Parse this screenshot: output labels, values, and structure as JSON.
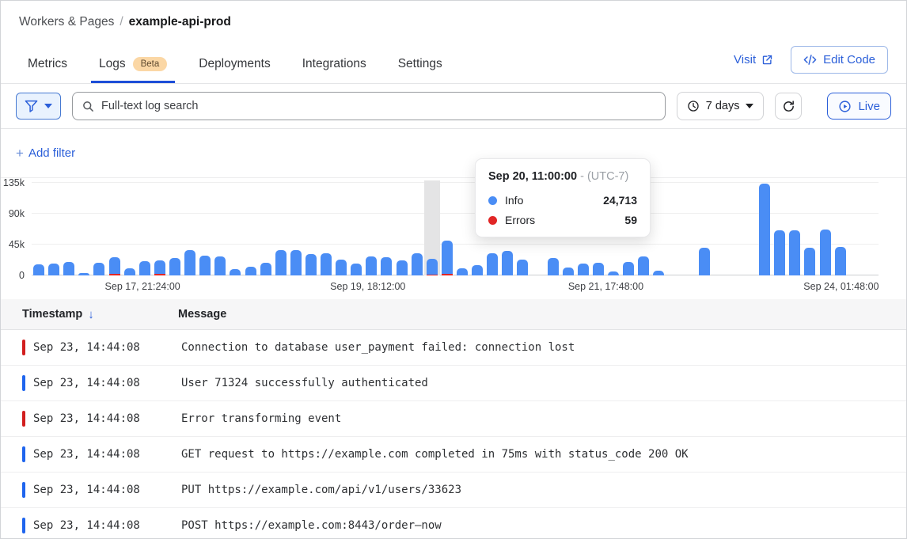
{
  "breadcrumb": {
    "section": "Workers & Pages",
    "separator": "/",
    "page": "example-api-prod"
  },
  "tabs": [
    {
      "label": "Metrics",
      "active": false
    },
    {
      "label": "Logs",
      "badge": "Beta",
      "active": true
    },
    {
      "label": "Deployments",
      "active": false
    },
    {
      "label": "Integrations",
      "active": false
    },
    {
      "label": "Settings",
      "active": false
    }
  ],
  "header_actions": {
    "visit_label": "Visit",
    "edit_code_label": "Edit Code"
  },
  "toolbar": {
    "search_placeholder": "Full-text log search",
    "time_range_label": "7 days",
    "live_label": "Live"
  },
  "filters": {
    "plus": "+",
    "add_filter_label": "Add filter"
  },
  "chart_data": {
    "type": "bar",
    "stacked": true,
    "title": "",
    "xlabel": "",
    "ylabel": "",
    "ylim": [
      0,
      135000
    ],
    "grid": true,
    "legend_position": "tooltip-only",
    "y_ticks": [
      {
        "label": "0",
        "value": 0
      },
      {
        "label": "45k",
        "value": 45000
      },
      {
        "label": "90k",
        "value": 90000
      },
      {
        "label": "135k",
        "value": 135000
      }
    ],
    "x_axis_labels": [
      {
        "label": "Sep 17, 21:24:00",
        "position": 0.131
      },
      {
        "label": "Sep 19, 18:12:00",
        "position": 0.397
      },
      {
        "label": "Sep 21, 17:48:00",
        "position": 0.678
      },
      {
        "label": "Sep 24, 01:48:00",
        "position": 0.956
      }
    ],
    "hovered_index": 26,
    "hovered_time": "Sep 20, 11:00:00",
    "series": [
      {
        "name": "Info",
        "color": "#4a8df5",
        "values": [
          16000,
          17000,
          20000,
          3000,
          18000,
          27000,
          10000,
          21000,
          22000,
          25000,
          37000,
          29000,
          28000,
          9000,
          13000,
          18000,
          37000,
          37000,
          31000,
          32000,
          23000,
          17000,
          28000,
          27000,
          22000,
          32000,
          24713,
          51000,
          10000,
          15000,
          32000,
          36000,
          23000,
          0,
          25000,
          11000,
          17000,
          18000,
          6000,
          20000,
          28000,
          7000,
          0,
          0,
          40000,
          0,
          0,
          0,
          134000,
          66000,
          66000,
          40000,
          67000,
          41000,
          0,
          0
        ]
      },
      {
        "name": "Errors",
        "color": "#e12626",
        "values": [
          0,
          0,
          0,
          0,
          0,
          800,
          0,
          0,
          600,
          0,
          0,
          0,
          0,
          0,
          0,
          0,
          0,
          0,
          0,
          0,
          0,
          0,
          0,
          0,
          0,
          0,
          59,
          2500,
          0,
          0,
          0,
          0,
          0,
          0,
          0,
          0,
          0,
          0,
          0,
          0,
          0,
          0,
          0,
          0,
          0,
          0,
          0,
          0,
          0,
          0,
          0,
          0,
          0,
          0,
          0,
          0
        ]
      }
    ]
  },
  "tooltip": {
    "title": "Sep 20, 11:00:00",
    "timezone_suffix": "- (UTC-7)",
    "rows": [
      {
        "label": "Info",
        "value": "24,713",
        "color": "#4a8df5"
      },
      {
        "label": "Errors",
        "value": "59",
        "color": "#e12626"
      }
    ]
  },
  "table": {
    "columns": [
      {
        "label": "Timestamp",
        "sort": "desc"
      },
      {
        "label": "Message",
        "sort": null
      }
    ],
    "sort_icon": "↓",
    "rows": [
      {
        "level": "error",
        "timestamp": "Sep 23, 14:44:08",
        "message": "Connection to database user_payment failed: connection lost"
      },
      {
        "level": "info",
        "timestamp": "Sep 23, 14:44:08",
        "message": "User 71324 successfully authenticated"
      },
      {
        "level": "error",
        "timestamp": "Sep 23, 14:44:08",
        "message": "Error transforming event"
      },
      {
        "level": "info",
        "timestamp": "Sep 23, 14:44:08",
        "message": "GET request to https://example.com completed in 75ms with status_code 200 OK"
      },
      {
        "level": "info",
        "timestamp": "Sep 23, 14:44:08",
        "message": "PUT https://example.com/api/v1/users/33623"
      },
      {
        "level": "info",
        "timestamp": "Sep 23, 14:44:08",
        "message": "POST https://example.com:8443/order–now"
      }
    ]
  },
  "colors": {
    "accent_blue": "#2b5fd9",
    "active_tab_underline": "#1d4ed8",
    "bar_info": "#4a8df5",
    "bar_error": "#e12626",
    "row_indicator_error": "#d21e1e",
    "row_indicator_info": "#1f65ee",
    "beta_badge_bg": "#fbd7a5",
    "hover_band": "#e4e4e5"
  }
}
